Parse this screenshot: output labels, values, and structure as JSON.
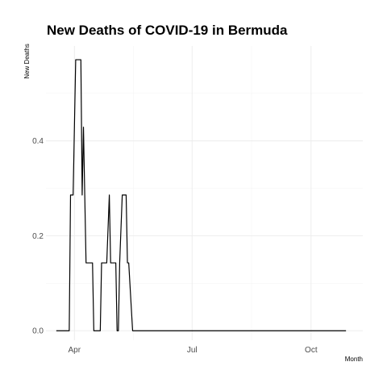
{
  "chart_data": {
    "type": "line",
    "title": "New Deaths of COVID-19 in Bermuda",
    "xlabel": "Month",
    "ylabel": "New Deaths",
    "x_range": [
      "2020-03-10",
      "2020-11-10"
    ],
    "ylim": [
      -0.02,
      0.6
    ],
    "x_ticks": [
      {
        "date": "2020-04-01",
        "label": "Apr"
      },
      {
        "date": "2020-07-01",
        "label": "Jul"
      },
      {
        "date": "2020-10-01",
        "label": "Oct"
      }
    ],
    "y_ticks": [
      {
        "value": 0.0,
        "label": "0.0"
      },
      {
        "value": 0.2,
        "label": "0.2"
      },
      {
        "value": 0.4,
        "label": "0.4"
      }
    ],
    "grid": true,
    "series": [
      {
        "color": "#000000",
        "points": [
          [
            "2020-03-18",
            0
          ],
          [
            "2020-03-28",
            0
          ],
          [
            "2020-03-29",
            0.286
          ],
          [
            "2020-03-31",
            0.286
          ],
          [
            "2020-04-02",
            0.571
          ],
          [
            "2020-04-06",
            0.571
          ],
          [
            "2020-04-07",
            0.286
          ],
          [
            "2020-04-08",
            0.429
          ],
          [
            "2020-04-09",
            0.286
          ],
          [
            "2020-04-10",
            0.143
          ],
          [
            "2020-04-15",
            0.143
          ],
          [
            "2020-04-16",
            0
          ],
          [
            "2020-04-21",
            0
          ],
          [
            "2020-04-22",
            0.143
          ],
          [
            "2020-04-26",
            0.143
          ],
          [
            "2020-04-28",
            0.286
          ],
          [
            "2020-04-29",
            0.143
          ],
          [
            "2020-05-03",
            0.143
          ],
          [
            "2020-05-04",
            0
          ],
          [
            "2020-05-05",
            0
          ],
          [
            "2020-05-06",
            0.143
          ],
          [
            "2020-05-08",
            0.286
          ],
          [
            "2020-05-11",
            0.286
          ],
          [
            "2020-05-12",
            0.143
          ],
          [
            "2020-05-13",
            0.143
          ],
          [
            "2020-05-16",
            0
          ],
          [
            "2020-10-28",
            0
          ]
        ]
      }
    ]
  }
}
